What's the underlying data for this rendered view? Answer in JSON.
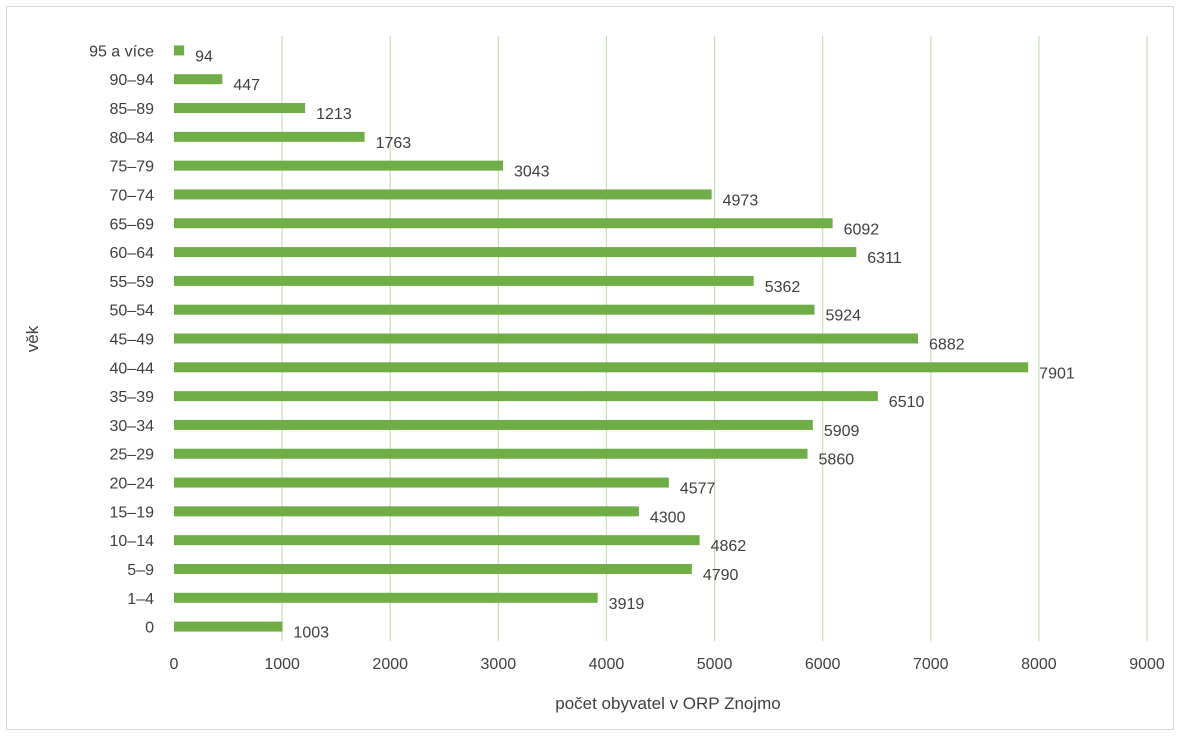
{
  "chart_data": {
    "type": "bar",
    "orientation": "horizontal",
    "title": "",
    "xlabel": "počet obyvatel v ORP Znojmo",
    "ylabel": "věk",
    "xlim": [
      0,
      9000
    ],
    "x_ticks": [
      "0",
      "1000",
      "2000",
      "3000",
      "4000",
      "5000",
      "6000",
      "7000",
      "8000",
      "9000"
    ],
    "grid": "vertical",
    "legend": "none",
    "bar_color": "#70ad47",
    "grid_color": "#c5e0b4",
    "categories": [
      "0",
      "1–4",
      "5–9",
      "10–14",
      "15–19",
      "20–24",
      "25–29",
      "30–34",
      "35–39",
      "40–44",
      "45–49",
      "50–54",
      "55–59",
      "60–64",
      "65–69",
      "70–74",
      "75–79",
      "80–84",
      "85–89",
      "90–94",
      "95 a více"
    ],
    "values": [
      1003,
      3919,
      4790,
      4862,
      4300,
      4577,
      5860,
      5909,
      6510,
      7901,
      6882,
      5924,
      5362,
      6311,
      6092,
      4973,
      3043,
      1763,
      1213,
      447,
      94
    ],
    "data_labels": [
      "1003",
      "3919",
      "4790",
      "4862",
      "4300",
      "4577",
      "5860",
      "5909",
      "6510",
      "7901",
      "6882",
      "5924",
      "5362",
      "6311",
      "6092",
      "4973",
      "3043",
      "1763",
      "1213",
      "447",
      "94"
    ]
  }
}
